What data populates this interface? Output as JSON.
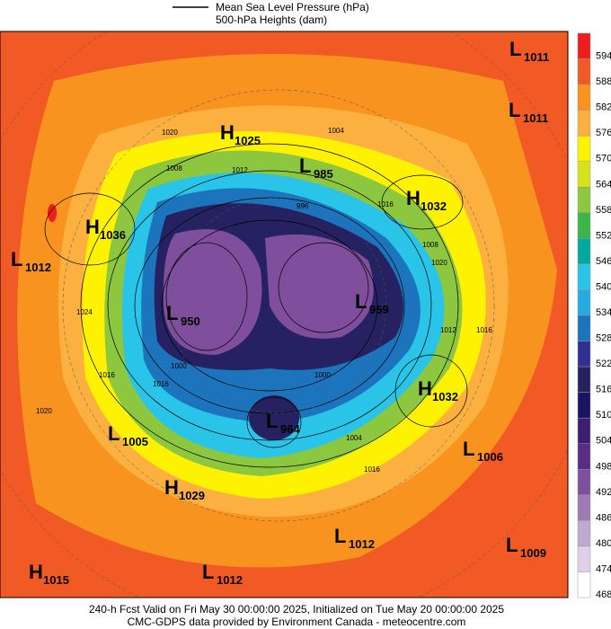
{
  "legend": {
    "line_label": "Mean Sea Level Pressure (hPa)",
    "fill_label": "500-hPa Heights (dam)"
  },
  "colorbar": {
    "levels": [
      594,
      588,
      582,
      576,
      570,
      564,
      558,
      552,
      546,
      540,
      534,
      528,
      522,
      516,
      510,
      504,
      498,
      492,
      486,
      480,
      474,
      468
    ],
    "colors": [
      "#ee1c1c",
      "#f15a24",
      "#f7931e",
      "#fbb040",
      "#fff200",
      "#d7e21b",
      "#8dc63f",
      "#39b54a",
      "#00a99d",
      "#29c4e8",
      "#27aae1",
      "#1c75bc",
      "#2e3192",
      "#262262",
      "#1b1464",
      "#3c1f73",
      "#5b2c83",
      "#7f4f9e",
      "#9e7bb5",
      "#bfa8d1",
      "#ddd0e8",
      "#ffffff"
    ]
  },
  "centers": [
    {
      "type": "H",
      "value": 1025
    },
    {
      "type": "L",
      "value": 985
    },
    {
      "type": "H",
      "value": 1032
    },
    {
      "type": "L",
      "value": 1011
    },
    {
      "type": "L",
      "value": 1011
    },
    {
      "type": "H",
      "value": 1036
    },
    {
      "type": "L",
      "value": 1012
    },
    {
      "type": "L",
      "value": 950
    },
    {
      "type": "L",
      "value": 959
    },
    {
      "type": "H",
      "value": 1032
    },
    {
      "type": "L",
      "value": 1005
    },
    {
      "type": "L",
      "value": 964
    },
    {
      "type": "L",
      "value": 1006
    },
    {
      "type": "H",
      "value": 1029
    },
    {
      "type": "L",
      "value": 1012
    },
    {
      "type": "L",
      "value": 1009
    },
    {
      "type": "H",
      "value": 1015
    },
    {
      "type": "L",
      "value": 1012
    }
  ],
  "contour_labels": [
    1020,
    1012,
    1004,
    1008,
    1024,
    1016,
    1000,
    996,
    1016,
    1020,
    1008,
    1016,
    1020,
    1016,
    1012,
    1016,
    1004,
    1000
  ],
  "footer": {
    "line1": "240-h Fcst Valid on Fri May 30 00:00:00 2025, Initialized on Tue May 20 00:00:00 2025",
    "line2": "CMC-GDPS data provided by Environment Canada - meteocentre.com"
  }
}
